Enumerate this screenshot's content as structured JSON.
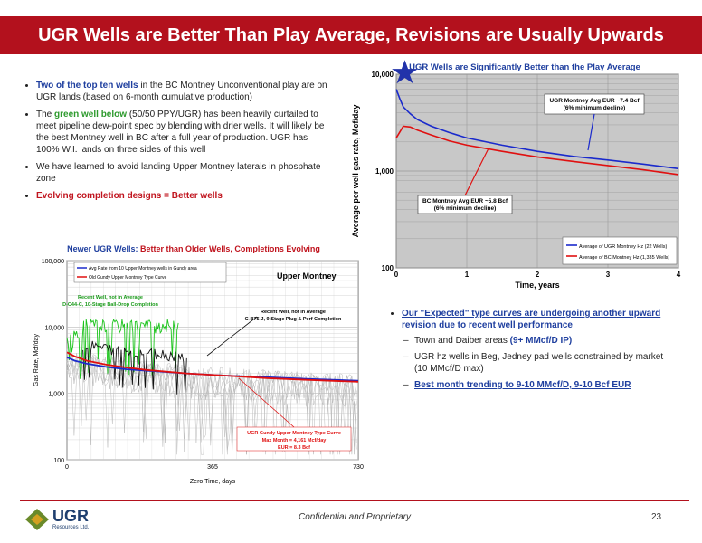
{
  "slide": {
    "title": "UGR Wells are Better Than Play Average, Revisions are Usually Upwards",
    "footer": "Confidential and Proprietary",
    "page_number": "23",
    "logo_text": "UGR",
    "logo_sub": "Resources Ltd."
  },
  "left_bullets": [
    {
      "parts": [
        {
          "text": "Two of the top ten wells",
          "style": "blue"
        },
        {
          "text": " in the BC Montney Unconventional play are on UGR lands (based on 6-month cumulative production)",
          "style": ""
        }
      ]
    },
    {
      "parts": [
        {
          "text": " The ",
          "style": ""
        },
        {
          "text": "green well below",
          "style": "green"
        },
        {
          "text": " (50/50 PPY/UGR) has been heavily curtailed to meet pipeline dew-point spec by blending with drier wells.  It will likely be the best Montney well in BC after a full year of production. UGR has 100% W.I. lands on three sides of this well",
          "style": ""
        }
      ]
    },
    {
      "parts": [
        {
          "text": "We have learned to avoid landing Upper Montney laterals in phosphate zone",
          "style": ""
        }
      ]
    },
    {
      "parts": [
        {
          "text": "Evolving completion designs = Better wells",
          "style": "red"
        }
      ]
    }
  ],
  "right_bullets": {
    "main": "Our \"Expected\" type curves are undergoing another upward revision due to recent well performance",
    "subs": [
      {
        "parts": [
          {
            "text": "Town and Daiber areas ",
            "style": ""
          },
          {
            "text": "(9+ MMcf/D IP)",
            "style": "blue"
          }
        ]
      },
      {
        "parts": [
          {
            "text": "UGR hz wells in Beg, Jedney pad wells constrained by market (10 MMcf/D max)",
            "style": ""
          }
        ]
      },
      {
        "parts": [
          {
            "text": "Best month trending to 9-10 MMcf/D, 9-10 Bcf EUR",
            "style": "ul"
          }
        ]
      }
    ]
  },
  "chart_data": [
    {
      "type": "line",
      "title": "UGR Wells are Significantly Better than the Play Average",
      "xlabel": "Time, years",
      "ylabel": "Average per well gas rate, Mcf/day",
      "xlim": [
        0,
        4
      ],
      "ylim": [
        100,
        10000
      ],
      "yscale": "log",
      "x_ticks": [
        "0",
        "1",
        "2",
        "3",
        "4"
      ],
      "y_ticks": [
        "100",
        "1,000",
        "10,000"
      ],
      "grid": true,
      "legend_position": "bottom-right",
      "series": [
        {
          "name": "Average of UGR Montney Hz (22 Wells)",
          "color": "#1a2acc",
          "x": [
            0.0,
            0.05,
            0.1,
            0.2,
            0.3,
            0.5,
            0.75,
            1.0,
            1.5,
            2.0,
            2.5,
            3.0,
            3.5,
            4.0
          ],
          "y": [
            7000,
            5600,
            4600,
            3900,
            3400,
            2900,
            2500,
            2200,
            1850,
            1600,
            1420,
            1300,
            1180,
            1060
          ]
        },
        {
          "name": "Average of BC Montney Hz (1,335 Wells)",
          "color": "#e01010",
          "x": [
            0.0,
            0.1,
            0.2,
            0.3,
            0.5,
            0.75,
            1.0,
            1.5,
            2.0,
            2.5,
            3.0,
            3.5,
            4.0
          ],
          "y": [
            2200,
            2900,
            2850,
            2650,
            2350,
            2050,
            1850,
            1600,
            1400,
            1260,
            1140,
            1030,
            920
          ]
        }
      ],
      "annotations": [
        "UGR Montney Avg EUR ~7.4 Bcf\n(6% minimum decline)",
        "BC Montney Avg EUR ~5.8 Bcf\n(6% minimum decline)"
      ]
    },
    {
      "type": "line",
      "title_parts": [
        {
          "text": "Newer UGR Wells: ",
          "color": "#1f3f9f"
        },
        {
          "text": "Better than Older Wells, Completions Evolving",
          "color": "#c0141e"
        }
      ],
      "xlabel": "Zero Time, days",
      "ylabel": "Gas Rate, Mcf/day",
      "xlim": [
        0,
        730
      ],
      "ylim": [
        100,
        100000
      ],
      "yscale": "log",
      "x_ticks": [
        "0",
        "365",
        "730"
      ],
      "y_ticks": [
        "100",
        "1,000",
        "10,000",
        "100,000"
      ],
      "legend_position": "top-left",
      "series": [
        {
          "name": "Avg Rate from 10 Upper Montney wells in Gundy area",
          "color": "#1a2acc",
          "x": [
            0,
            20,
            50,
            100,
            150,
            200,
            300,
            400,
            500,
            600,
            730
          ],
          "y": [
            3500,
            3100,
            2800,
            2500,
            2300,
            2200,
            2000,
            1850,
            1750,
            1650,
            1550
          ]
        },
        {
          "name": "Old Gundy Upper Montney Type Curve",
          "color": "#e01010",
          "x": [
            0,
            20,
            50,
            100,
            150,
            200,
            300,
            400,
            500,
            600,
            730
          ],
          "y": [
            4161,
            3600,
            3100,
            2700,
            2450,
            2250,
            2000,
            1850,
            1700,
            1600,
            1500
          ]
        }
      ],
      "inner_title": "Upper Montney",
      "annotations": [
        "Recent Well, not in Average\nD-C44-C, 10-Stage Ball-Drop Completion",
        "Recent Well, not in Average\nC-B75-J, 9-Stage Plug & Perf Completion",
        "UGR Gundy Upper Montney Type Curve\nMax Month = 4,161 Mcf/day\nEUR = 8.3 Bcf"
      ]
    }
  ],
  "colors": {
    "brand_red": "#b3111d",
    "blue": "#1a2acc",
    "red": "#e01010",
    "green": "#1cc41c"
  }
}
